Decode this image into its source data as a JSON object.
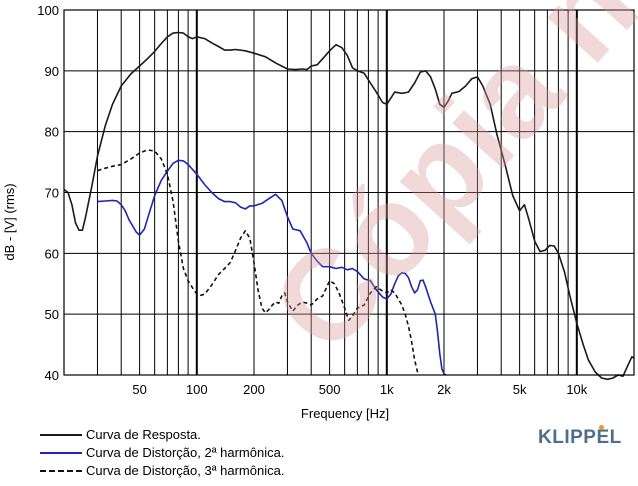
{
  "chart_data": {
    "type": "line",
    "title": "",
    "xlabel": "Frequency [Hz]",
    "ylabel": "dB - [V] (rms)",
    "xscale": "log",
    "xlim": [
      20,
      20000
    ],
    "ylim": [
      40,
      100
    ],
    "grid": true,
    "legend_position": "bottom-left",
    "x_ticks": [
      {
        "value": 50,
        "label": "50"
      },
      {
        "value": 100,
        "label": "100"
      },
      {
        "value": 200,
        "label": "200"
      },
      {
        "value": 500,
        "label": "500"
      },
      {
        "value": 1000,
        "label": "1k"
      },
      {
        "value": 2000,
        "label": "2k"
      },
      {
        "value": 5000,
        "label": "5k"
      },
      {
        "value": 10000,
        "label": "10k"
      }
    ],
    "y_ticks": [
      {
        "value": 40,
        "label": "40"
      },
      {
        "value": 50,
        "label": "50"
      },
      {
        "value": 60,
        "label": "60"
      },
      {
        "value": 70,
        "label": "70"
      },
      {
        "value": 80,
        "label": "80"
      },
      {
        "value": 90,
        "label": "90"
      },
      {
        "value": 100,
        "label": "100"
      }
    ],
    "series": [
      {
        "name": "Curva de Resposta.",
        "color": "#1a1a1a",
        "dash": "solid",
        "points": [
          [
            20,
            70.5
          ],
          [
            21,
            70.0
          ],
          [
            22,
            68.0
          ],
          [
            23,
            65.0
          ],
          [
            24,
            63.8
          ],
          [
            25,
            63.8
          ],
          [
            26,
            66.0
          ],
          [
            28,
            71.0
          ],
          [
            30,
            76.0
          ],
          [
            33,
            81.0
          ],
          [
            36,
            84.5
          ],
          [
            40,
            87.5
          ],
          [
            45,
            89.5
          ],
          [
            50,
            90.8
          ],
          [
            55,
            92.0
          ],
          [
            60,
            93.2
          ],
          [
            65,
            94.5
          ],
          [
            70,
            95.6
          ],
          [
            75,
            96.2
          ],
          [
            80,
            96.3
          ],
          [
            85,
            96.2
          ],
          [
            90,
            95.6
          ],
          [
            95,
            95.3
          ],
          [
            100,
            95.6
          ],
          [
            110,
            95.3
          ],
          [
            120,
            94.6
          ],
          [
            130,
            94.0
          ],
          [
            140,
            93.4
          ],
          [
            150,
            93.4
          ],
          [
            160,
            93.5
          ],
          [
            180,
            93.3
          ],
          [
            200,
            92.9
          ],
          [
            230,
            92.3
          ],
          [
            260,
            91.3
          ],
          [
            300,
            90.3
          ],
          [
            330,
            90.2
          ],
          [
            360,
            90.3
          ],
          [
            380,
            90.2
          ],
          [
            400,
            90.8
          ],
          [
            430,
            91.0
          ],
          [
            460,
            92.0
          ],
          [
            500,
            93.3
          ],
          [
            540,
            94.3
          ],
          [
            580,
            93.8
          ],
          [
            620,
            92.5
          ],
          [
            660,
            90.5
          ],
          [
            700,
            90.0
          ],
          [
            760,
            89.6
          ],
          [
            820,
            88.0
          ],
          [
            880,
            86.5
          ],
          [
            950,
            84.8
          ],
          [
            1000,
            84.5
          ],
          [
            1050,
            85.5
          ],
          [
            1100,
            86.5
          ],
          [
            1200,
            86.3
          ],
          [
            1300,
            86.5
          ],
          [
            1400,
            88.0
          ],
          [
            1500,
            89.8
          ],
          [
            1600,
            90.0
          ],
          [
            1700,
            89.0
          ],
          [
            1800,
            87.0
          ],
          [
            1900,
            84.5
          ],
          [
            2000,
            84.0
          ],
          [
            2100,
            85.0
          ],
          [
            2200,
            86.3
          ],
          [
            2400,
            86.6
          ],
          [
            2600,
            87.5
          ],
          [
            2800,
            88.7
          ],
          [
            3000,
            89.0
          ],
          [
            3200,
            87.5
          ],
          [
            3500,
            84.5
          ],
          [
            3800,
            79.5
          ],
          [
            4200,
            74.5
          ],
          [
            4600,
            69.5
          ],
          [
            5000,
            67.0
          ],
          [
            5300,
            68.0
          ],
          [
            5600,
            65.5
          ],
          [
            6000,
            62.0
          ],
          [
            6400,
            60.3
          ],
          [
            6800,
            60.5
          ],
          [
            7200,
            61.3
          ],
          [
            7600,
            61.2
          ],
          [
            8000,
            60.0
          ],
          [
            8600,
            57.0
          ],
          [
            9200,
            53.0
          ],
          [
            10000,
            48.5
          ],
          [
            10800,
            45.0
          ],
          [
            11500,
            42.5
          ],
          [
            12500,
            40.5
          ],
          [
            13500,
            39.5
          ],
          [
            14500,
            39.3
          ],
          [
            15500,
            39.5
          ],
          [
            16500,
            40.0
          ],
          [
            17500,
            39.8
          ],
          [
            18500,
            41.5
          ],
          [
            19500,
            43.0
          ],
          [
            20000,
            42.8
          ]
        ]
      },
      {
        "name": "Curva de Distorção, 2ª harmônica.",
        "color": "#1f24b3",
        "dash": "solid",
        "points": [
          [
            30,
            68.5
          ],
          [
            33,
            68.6
          ],
          [
            36,
            68.7
          ],
          [
            38,
            68.6
          ],
          [
            40,
            68.0
          ],
          [
            42,
            67.0
          ],
          [
            44,
            65.5
          ],
          [
            46,
            64.5
          ],
          [
            48,
            63.5
          ],
          [
            50,
            63.0
          ],
          [
            53,
            64.0
          ],
          [
            56,
            66.5
          ],
          [
            60,
            69.5
          ],
          [
            65,
            72.0
          ],
          [
            70,
            73.5
          ],
          [
            75,
            74.8
          ],
          [
            80,
            75.3
          ],
          [
            85,
            75.2
          ],
          [
            90,
            74.6
          ],
          [
            100,
            73.0
          ],
          [
            110,
            71.3
          ],
          [
            120,
            70.0
          ],
          [
            130,
            69.0
          ],
          [
            140,
            68.5
          ],
          [
            150,
            68.5
          ],
          [
            160,
            68.3
          ],
          [
            170,
            67.6
          ],
          [
            180,
            67.3
          ],
          [
            190,
            67.8
          ],
          [
            200,
            67.8
          ],
          [
            220,
            68.2
          ],
          [
            240,
            69.0
          ],
          [
            260,
            69.7
          ],
          [
            280,
            68.7
          ],
          [
            300,
            66.0
          ],
          [
            320,
            64.0
          ],
          [
            350,
            63.7
          ],
          [
            380,
            61.7
          ],
          [
            400,
            60.0
          ],
          [
            430,
            58.7
          ],
          [
            460,
            57.8
          ],
          [
            500,
            57.8
          ],
          [
            540,
            57.5
          ],
          [
            580,
            57.7
          ],
          [
            620,
            57.3
          ],
          [
            660,
            57.5
          ],
          [
            700,
            57.0
          ],
          [
            760,
            55.8
          ],
          [
            820,
            55.5
          ],
          [
            880,
            54.0
          ],
          [
            950,
            52.8
          ],
          [
            1000,
            52.5
          ],
          [
            1050,
            53.3
          ],
          [
            1100,
            55.0
          ],
          [
            1150,
            56.3
          ],
          [
            1200,
            56.8
          ],
          [
            1250,
            56.7
          ],
          [
            1300,
            56.0
          ],
          [
            1350,
            54.5
          ],
          [
            1400,
            53.5
          ],
          [
            1450,
            54.0
          ],
          [
            1500,
            55.5
          ],
          [
            1550,
            55.6
          ],
          [
            1600,
            54.5
          ],
          [
            1700,
            52.0
          ],
          [
            1800,
            50.0
          ],
          [
            1850,
            47.0
          ],
          [
            1900,
            43.5
          ],
          [
            1950,
            41.0
          ],
          [
            2000,
            40.2
          ],
          [
            2050,
            40.0
          ]
        ]
      },
      {
        "name": "Curva de Distorção, 3ª harmônica.",
        "color": "#111111",
        "dash": "dashed",
        "points": [
          [
            30,
            73.6
          ],
          [
            33,
            74.0
          ],
          [
            36,
            74.3
          ],
          [
            40,
            74.6
          ],
          [
            45,
            75.5
          ],
          [
            50,
            76.5
          ],
          [
            55,
            77.0
          ],
          [
            60,
            76.8
          ],
          [
            65,
            75.5
          ],
          [
            70,
            73.0
          ],
          [
            75,
            68.5
          ],
          [
            80,
            62.0
          ],
          [
            85,
            57.5
          ],
          [
            90,
            55.5
          ],
          [
            95,
            54.3
          ],
          [
            100,
            53.3
          ],
          [
            105,
            53.1
          ],
          [
            110,
            53.3
          ],
          [
            120,
            54.8
          ],
          [
            130,
            56.5
          ],
          [
            140,
            57.5
          ],
          [
            150,
            58.5
          ],
          [
            160,
            60.5
          ],
          [
            170,
            62.5
          ],
          [
            180,
            63.7
          ],
          [
            190,
            62.5
          ],
          [
            200,
            58.5
          ],
          [
            210,
            54.0
          ],
          [
            220,
            51.0
          ],
          [
            230,
            50.2
          ],
          [
            240,
            50.8
          ],
          [
            250,
            51.5
          ],
          [
            260,
            52.0
          ],
          [
            270,
            51.8
          ],
          [
            280,
            53.0
          ],
          [
            290,
            53.5
          ],
          [
            300,
            52.0
          ],
          [
            320,
            50.5
          ],
          [
            340,
            51.5
          ],
          [
            360,
            52.0
          ],
          [
            380,
            51.8
          ],
          [
            400,
            51.5
          ],
          [
            430,
            52.5
          ],
          [
            460,
            53.0
          ],
          [
            500,
            55.5
          ],
          [
            530,
            55.0
          ],
          [
            560,
            53.5
          ],
          [
            600,
            51.0
          ],
          [
            630,
            49.0
          ],
          [
            660,
            49.7
          ],
          [
            700,
            51.0
          ],
          [
            760,
            51.5
          ],
          [
            820,
            53.5
          ],
          [
            880,
            54.5
          ],
          [
            950,
            53.8
          ],
          [
            1000,
            53.5
          ],
          [
            1050,
            54.0
          ],
          [
            1100,
            53.5
          ],
          [
            1150,
            52.5
          ],
          [
            1200,
            51.5
          ],
          [
            1250,
            50.0
          ],
          [
            1300,
            48.0
          ],
          [
            1350,
            45.5
          ],
          [
            1400,
            42.5
          ],
          [
            1450,
            40.5
          ],
          [
            1480,
            40.0
          ]
        ]
      }
    ]
  },
  "brand": "KLIPPEL",
  "watermark": "Cópia na"
}
